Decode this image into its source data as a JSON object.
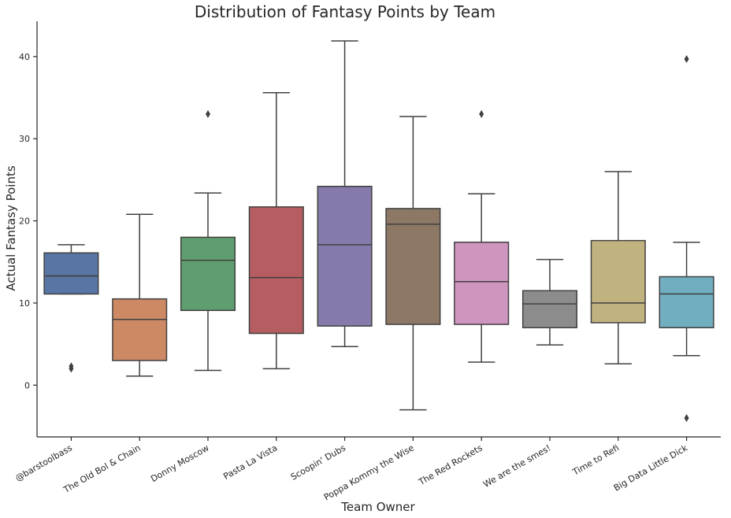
{
  "chart_data": {
    "type": "box",
    "title": "Distribution of Fantasy Points by Team",
    "xlabel": "Team Owner",
    "ylabel": "Actual Fantasy Points",
    "ylim": [
      -6.3,
      44.3
    ],
    "yticks": [
      0,
      10,
      20,
      30,
      40
    ],
    "grid": false,
    "categories": [
      "@barstoolbass",
      "The Old Bol & Chain",
      "Donny Moscow",
      "Pasta La Vista",
      "Scoopin' Dubs",
      "Poppa Kommy the Wise",
      "The Red Rockets",
      "We are the smes!",
      "Time to Refi",
      "Big Data Little Dick"
    ],
    "boxes": [
      {
        "min": 11.1,
        "q1": 11.1,
        "median": 13.3,
        "q3": 16.1,
        "max": 17.1,
        "fliers": [
          2.0,
          2.3
        ],
        "color": "#5975a4"
      },
      {
        "min": 1.1,
        "q1": 3.0,
        "median": 8.0,
        "q3": 10.5,
        "max": 20.8,
        "fliers": [],
        "color": "#cc8963"
      },
      {
        "min": 1.8,
        "q1": 9.1,
        "median": 15.2,
        "q3": 18.0,
        "max": 23.4,
        "fliers": [
          33.0
        ],
        "color": "#5f9e6e"
      },
      {
        "min": 2.0,
        "q1": 6.3,
        "median": 13.1,
        "q3": 21.7,
        "max": 35.6,
        "fliers": [],
        "color": "#b55d60"
      },
      {
        "min": 4.7,
        "q1": 7.2,
        "median": 17.1,
        "q3": 24.2,
        "max": 41.9,
        "fliers": [],
        "color": "#857aab"
      },
      {
        "min": -3.0,
        "q1": 7.4,
        "median": 19.6,
        "q3": 21.5,
        "max": 32.7,
        "fliers": [],
        "color": "#8d7866"
      },
      {
        "min": 2.8,
        "q1": 7.4,
        "median": 12.6,
        "q3": 17.4,
        "max": 23.3,
        "fliers": [
          33.0
        ],
        "color": "#d095bf"
      },
      {
        "min": 4.9,
        "q1": 7.0,
        "median": 9.9,
        "q3": 11.5,
        "max": 15.3,
        "fliers": [],
        "color": "#8c8c8c"
      },
      {
        "min": 2.6,
        "q1": 7.6,
        "median": 10.0,
        "q3": 17.6,
        "max": 26.0,
        "fliers": [],
        "color": "#c1b37f"
      },
      {
        "min": 3.6,
        "q1": 7.0,
        "median": 11.1,
        "q3": 13.2,
        "max": 17.4,
        "fliers": [
          39.7,
          -4.0
        ],
        "color": "#71aec0"
      }
    ]
  }
}
